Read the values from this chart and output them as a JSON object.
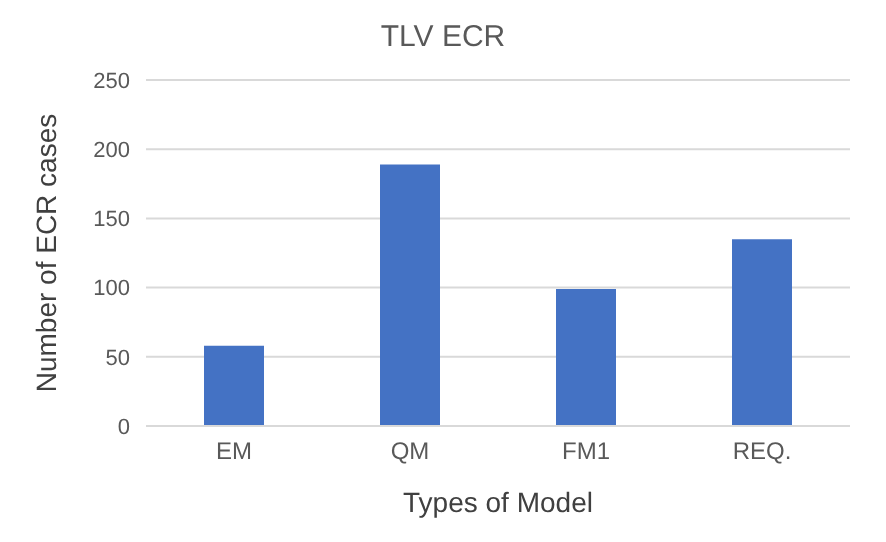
{
  "chart_data": {
    "type": "bar",
    "title": "TLV ECR",
    "xlabel": "Types of Model",
    "ylabel": "Number of ECR cases",
    "categories": [
      "EM",
      "QM",
      "FM1",
      "REQ."
    ],
    "values": [
      58,
      189,
      99,
      135
    ],
    "color": "#4472c4",
    "ylim": [
      0,
      250
    ],
    "yticks": [
      0,
      50,
      100,
      150,
      200,
      250
    ],
    "grid": "y"
  }
}
